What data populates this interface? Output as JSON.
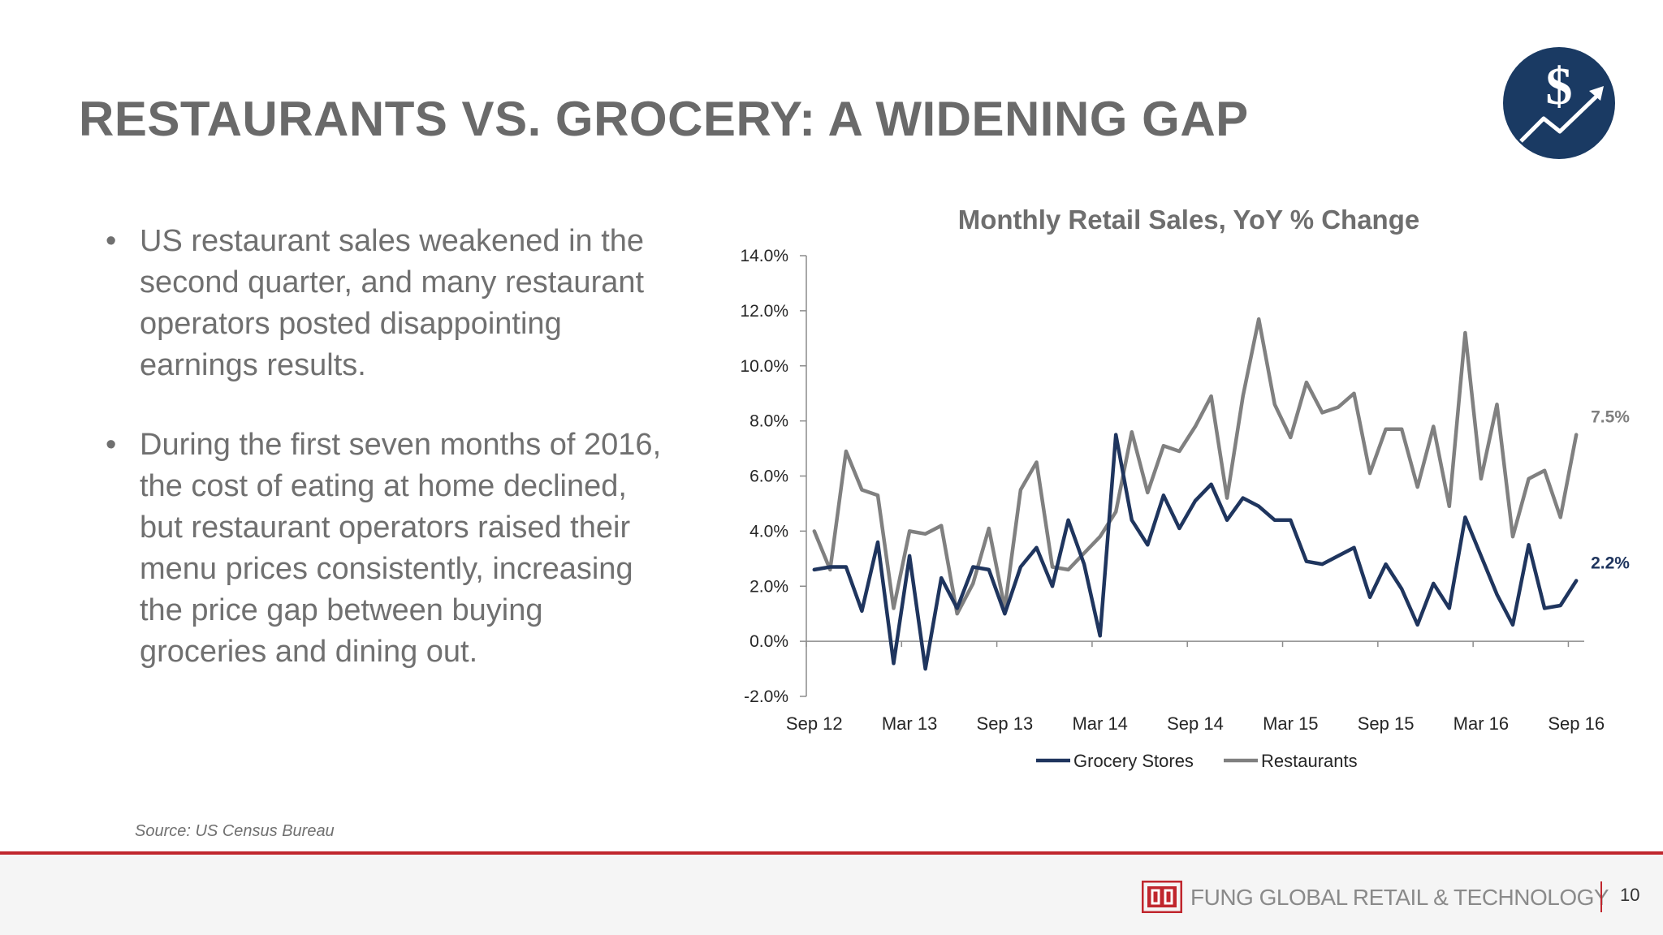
{
  "slide": {
    "title": "RESTAURANTS VS. GROCERY: A WIDENING GAP",
    "bullets": [
      "US restaurant sales weakened in the second quarter, and many restaurant operators posted disappointing earnings results.",
      "During the first seven months of 2016, the cost of eating at home declined, but restaurant operators raised their menu prices consistently, increasing the price gap between buying groceries and dining out."
    ],
    "source": "Source: US Census Bureau",
    "footer": {
      "company": "FUNG GLOBAL RETAIL & TECHNOLOGY",
      "page_number": "10",
      "accent_color": "#c0262d"
    },
    "logo_badge": {
      "icon": "dollar-growth-icon",
      "color": "#1a3a63"
    }
  },
  "chart_data": {
    "type": "line",
    "title": "Monthly Retail Sales, YoY % Change",
    "xlabel": "",
    "ylabel": "",
    "x": [
      "Sep 12",
      "Oct 12",
      "Nov 12",
      "Dec 12",
      "Jan 13",
      "Feb 13",
      "Mar 13",
      "Apr 13",
      "May 13",
      "Jun 13",
      "Jul 13",
      "Aug 13",
      "Sep 13",
      "Oct 13",
      "Nov 13",
      "Dec 13",
      "Jan 14",
      "Feb 14",
      "Mar 14",
      "Apr 14",
      "May 14",
      "Jun 14",
      "Jul 14",
      "Aug 14",
      "Sep 14",
      "Oct 14",
      "Nov 14",
      "Dec 14",
      "Jan 15",
      "Feb 15",
      "Mar 15",
      "Apr 15",
      "May 15",
      "Jun 15",
      "Jul 15",
      "Aug 15",
      "Sep 15",
      "Oct 15",
      "Nov 15",
      "Dec 15",
      "Jan 16",
      "Feb 16",
      "Mar 16",
      "Apr 16",
      "May 16",
      "Jun 16",
      "Jul 16",
      "Aug 16",
      "Sep 16"
    ],
    "x_tick_labels": [
      "Sep 12",
      "Mar 13",
      "Sep 13",
      "Mar 14",
      "Sep 14",
      "Mar 15",
      "Sep 15",
      "Mar 16",
      "Sep 16"
    ],
    "y_tick_labels": [
      "-2.0%",
      "0.0%",
      "2.0%",
      "4.0%",
      "6.0%",
      "8.0%",
      "10.0%",
      "12.0%",
      "14.0%"
    ],
    "ylim": [
      -2,
      14
    ],
    "grid": false,
    "legend": "bottom",
    "series": [
      {
        "name": "Grocery Stores",
        "color": "#1f355e",
        "values": [
          2.6,
          2.7,
          2.7,
          1.1,
          3.6,
          -0.8,
          3.1,
          -1.0,
          2.3,
          1.2,
          2.7,
          2.6,
          1.0,
          2.7,
          3.4,
          2.0,
          4.4,
          2.8,
          0.2,
          7.5,
          4.4,
          3.5,
          5.3,
          4.1,
          5.1,
          5.7,
          4.4,
          5.2,
          4.9,
          4.4,
          4.4,
          2.9,
          2.8,
          3.1,
          3.4,
          1.6,
          2.8,
          1.9,
          0.6,
          2.1,
          1.2,
          4.5,
          3.1,
          1.7,
          0.6,
          3.5,
          1.2,
          1.3,
          2.2
        ],
        "end_label": "2.2%"
      },
      {
        "name": "Restaurants",
        "color": "#808080",
        "values": [
          4.0,
          2.6,
          6.9,
          5.5,
          5.3,
          1.2,
          4.0,
          3.9,
          4.2,
          1.0,
          2.1,
          4.1,
          1.2,
          5.5,
          6.5,
          2.7,
          2.6,
          3.2,
          3.8,
          4.7,
          7.6,
          5.4,
          7.1,
          6.9,
          7.8,
          8.9,
          5.2,
          8.9,
          11.7,
          8.6,
          7.4,
          9.4,
          8.3,
          8.5,
          9.0,
          6.1,
          7.7,
          7.7,
          5.6,
          7.8,
          4.9,
          11.2,
          5.9,
          8.6,
          3.8,
          5.9,
          6.2,
          4.5,
          7.5
        ],
        "end_label": "7.5%"
      }
    ]
  }
}
